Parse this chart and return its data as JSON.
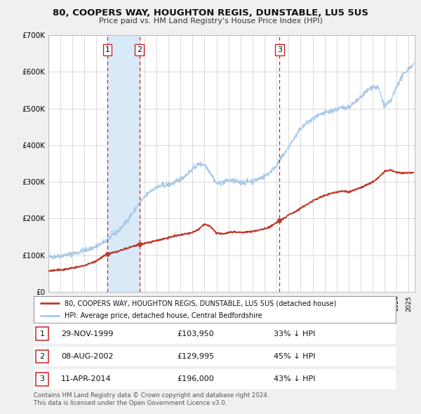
{
  "title": "80, COOPERS WAY, HOUGHTON REGIS, DUNSTABLE, LU5 5US",
  "subtitle": "Price paid vs. HM Land Registry's House Price Index (HPI)",
  "hpi_color": "#a8c8e8",
  "price_color": "#c0392b",
  "bg_color": "#f0f0f0",
  "plot_bg_color": "#ffffff",
  "ylim": [
    0,
    700000
  ],
  "yticks": [
    0,
    100000,
    200000,
    300000,
    400000,
    500000,
    600000,
    700000
  ],
  "ytick_labels": [
    "£0",
    "£100K",
    "£200K",
    "£300K",
    "£400K",
    "£500K",
    "£600K",
    "£700K"
  ],
  "sale_prices": [
    103950,
    129995,
    196000
  ],
  "sale_labels": [
    "1",
    "2",
    "3"
  ],
  "vline_color": "#cc2222",
  "shade_color": "#d8eaf8",
  "legend_label_red": "80, COOPERS WAY, HOUGHTON REGIS, DUNSTABLE, LU5 5US (detached house)",
  "legend_label_blue": "HPI: Average price, detached house, Central Bedfordshire",
  "table_rows": [
    {
      "num": "1",
      "date": "29-NOV-1999",
      "price": "£103,950",
      "pct": "33% ↓ HPI"
    },
    {
      "num": "2",
      "date": "08-AUG-2002",
      "price": "£129,995",
      "pct": "45% ↓ HPI"
    },
    {
      "num": "3",
      "date": "11-APR-2014",
      "price": "£196,000",
      "pct": "43% ↓ HPI"
    }
  ],
  "footer": "Contains HM Land Registry data © Crown copyright and database right 2024.\nThis data is licensed under the Open Government Licence v3.0.",
  "xstart": 1995.0,
  "xend": 2025.5
}
